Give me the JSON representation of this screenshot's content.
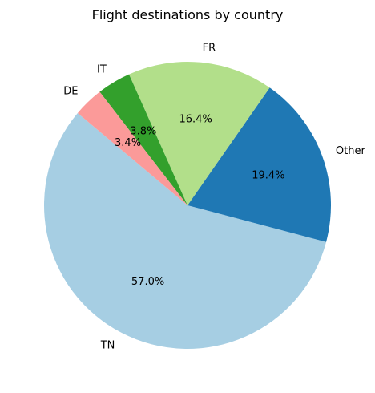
{
  "chart_data": {
    "type": "pie",
    "title": "Flight destinations by country",
    "start_angle_deg": 140,
    "direction": "counterclockwise",
    "slices": [
      {
        "label": "TN",
        "value": 57.0,
        "pct_label": "57.0%",
        "color": "#a6cee3"
      },
      {
        "label": "Other",
        "value": 19.4,
        "pct_label": "19.4%",
        "color": "#1f78b4"
      },
      {
        "label": "FR",
        "value": 16.4,
        "pct_label": "16.4%",
        "color": "#b2df8a"
      },
      {
        "label": "IT",
        "value": 3.8,
        "pct_label": "3.8%",
        "color": "#33a02c"
      },
      {
        "label": "DE",
        "value": 3.4,
        "pct_label": "3.4%",
        "color": "#fb9a99"
      }
    ]
  }
}
